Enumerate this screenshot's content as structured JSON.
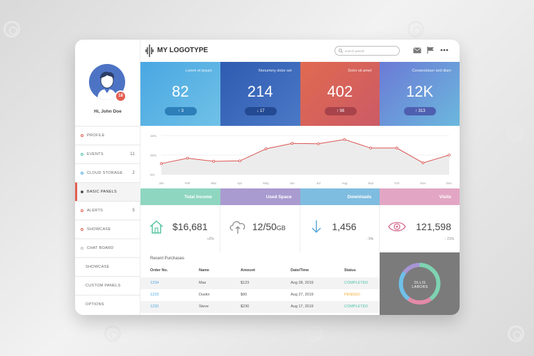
{
  "header": {
    "logo_text": "MY LOGOTYPE",
    "search_placeholder": "search panels"
  },
  "user": {
    "greeting": "Hi, John Doe",
    "notification_count": "18"
  },
  "sidebar": {
    "items": [
      {
        "label": "PROFILE",
        "count": ""
      },
      {
        "label": "EVENTS",
        "count": "11"
      },
      {
        "label": "CLOUD STORAGE",
        "count": "2"
      },
      {
        "label": "BASIC PANELS",
        "count": ""
      },
      {
        "label": "ALERTS",
        "count": "5"
      },
      {
        "label": "SHOWCASE",
        "count": ""
      },
      {
        "label": "CHAT BOARD",
        "count": ""
      },
      {
        "label": "SHOWCASE",
        "count": ""
      },
      {
        "label": "CUSTOM PANELS",
        "count": ""
      },
      {
        "label": "OPTIONS",
        "count": ""
      }
    ]
  },
  "stats": [
    {
      "label": "Lorem et ipsum",
      "value": "82",
      "change": "↑ 3",
      "color_from": "#4aa7e3",
      "color_to": "#6fc1e6",
      "pill": "#2c7fb9"
    },
    {
      "label": "Nonummy dolor set",
      "value": "214",
      "change": "↓ 17",
      "color_from": "#2f5bb0",
      "color_to": "#4b79c7",
      "pill": "#244a93"
    },
    {
      "label": "Dolor sit amet",
      "value": "402",
      "change": "↑ 98",
      "color_from": "#e06a50",
      "color_to": "#cc5a66",
      "pill": "#a8434b"
    },
    {
      "label": "Consectetuer sed diam",
      "value": "12K",
      "change": "↑ 313",
      "color_from": "#6b7ad6",
      "color_to": "#6bb8dd",
      "pill": "#4e5fb0"
    }
  ],
  "chart_data": {
    "type": "area",
    "categories": [
      "Jan",
      "Feb",
      "Mar",
      "Apr",
      "May",
      "Jun",
      "Jul",
      "Aug",
      "Sep",
      "Oct",
      "Nov",
      "Dec"
    ],
    "y_tick_labels": [
      "15%",
      "25%",
      "0%"
    ],
    "ylim": [
      0,
      100
    ],
    "series": [
      {
        "values": [
          28,
          42,
          34,
          35,
          66,
          80,
          79,
          90,
          68,
          68,
          30,
          50
        ],
        "color": "#d9534f"
      }
    ]
  },
  "categories_bar": [
    {
      "label": "Total Income",
      "color": "#8fd6c0"
    },
    {
      "label": "Used Space",
      "color": "#a99bd0"
    },
    {
      "label": "Downloads",
      "color": "#7fbde0"
    },
    {
      "label": "Visits",
      "color": "#e2a6c4"
    }
  ],
  "metrics": [
    {
      "icon": "home-icon",
      "value": "$16,681",
      "unit": "",
      "change": "+2%"
    },
    {
      "icon": "cloud-upload-icon",
      "value": "12/50",
      "unit": "GB",
      "change": ""
    },
    {
      "icon": "download-arrow-icon",
      "value": "1,456",
      "unit": "",
      "change": "- 9%"
    },
    {
      "icon": "eye-icon",
      "value": "121,598",
      "unit": "",
      "change": "- 21%"
    }
  ],
  "purchases": {
    "title": "Recent Purchases",
    "columns": [
      "Order No.",
      "Name",
      "Amount",
      "Date/Time",
      "Status"
    ],
    "rows": [
      {
        "order": "1234",
        "name": "Max",
        "amount": "$123",
        "date": "Aug 28, 2019",
        "status": "COMPLETED",
        "status_color": "#4ec3a7"
      },
      {
        "order": "1223",
        "name": "Dustin",
        "amount": "$90",
        "date": "Aug 27, 2019",
        "status": "PENDED",
        "status_color": "#f0b23a"
      },
      {
        "order": "1232",
        "name": "Steve",
        "amount": "$230",
        "date": "Aug 17, 2019",
        "status": "COMPLETED",
        "status_color": "#4ec3a7"
      }
    ]
  },
  "donut": {
    "label": "OLLIS LABORS",
    "segments": [
      {
        "value": 40,
        "color": "#7ed3b2"
      },
      {
        "value": 20,
        "color": "#e48aa9"
      },
      {
        "value": 25,
        "color": "#6fc0e8"
      },
      {
        "value": 15,
        "color": "#a795d5"
      }
    ]
  }
}
